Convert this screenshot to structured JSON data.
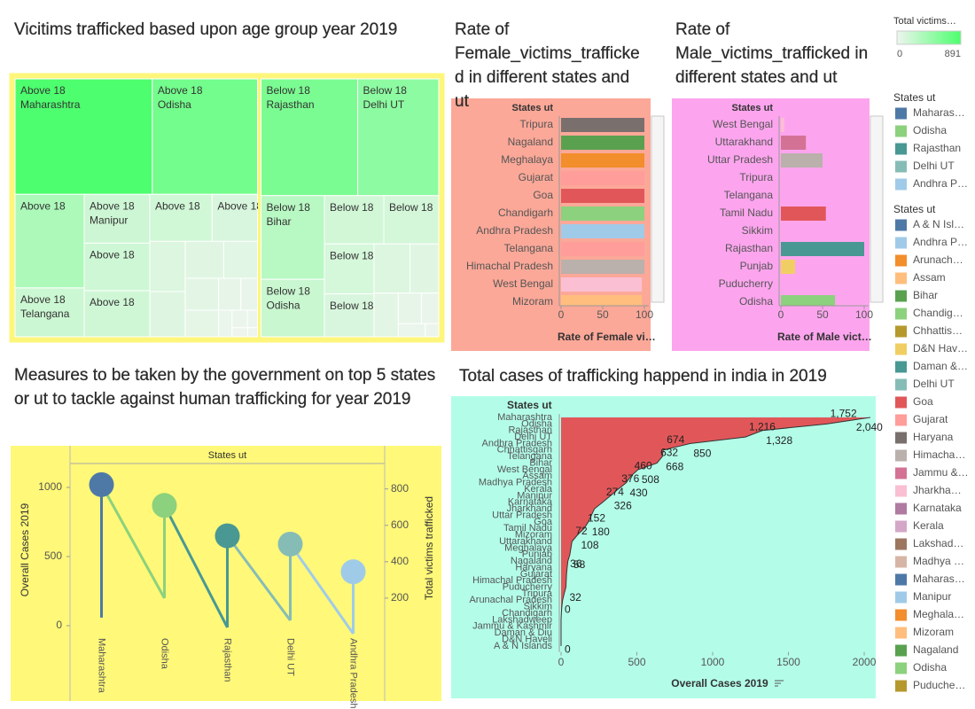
{
  "chart_data": [
    {
      "type": "treemap",
      "title": "Vicitims trafficked based upon age group year 2019",
      "border_color": "#fdf67a",
      "color_scale": {
        "title": "Total victims…",
        "range": [
          0,
          891
        ],
        "colors": [
          "#eef5ee",
          "#4dff6e"
        ]
      },
      "groups": [
        {
          "name": "Above 18",
          "labels": [
            "Maharashtra",
            "Odisha",
            null,
            "Telangana",
            "Manipur",
            null,
            null,
            null,
            null,
            null,
            null,
            null,
            null,
            null,
            null,
            null,
            null,
            null,
            null,
            null,
            null,
            null
          ],
          "values": [
            891,
            683,
            364,
            190,
            180,
            175,
            170,
            165,
            120,
            100,
            90,
            80,
            70,
            60,
            50,
            40,
            30,
            20,
            15,
            10,
            8,
            5
          ]
        },
        {
          "name": "Below 18",
          "labels": [
            "Rajasthan",
            "Delhi UT",
            "Bihar",
            "Odisha",
            null,
            null,
            null,
            null,
            null,
            null,
            null,
            null,
            null,
            null,
            null
          ],
          "values": [
            638,
            535,
            300,
            206,
            162,
            150,
            140,
            120,
            100,
            80,
            60,
            40,
            30,
            20,
            10
          ]
        }
      ]
    },
    {
      "type": "bar",
      "orientation": "horizontal",
      "title": "Rate of  Female_victims_trafficked in different states and ut",
      "column_header": "States ut",
      "xlabel": "Rate of Female vi…",
      "background": "#fba898",
      "categories": [
        "Tripura",
        "Nagaland",
        "Meghalaya",
        "Gujarat",
        "Goa",
        "Chandigarh",
        "Andhra Pradesh",
        "Telangana",
        "Himachal Pradesh",
        "West Bengal",
        "Mizoram"
      ],
      "values": [
        100,
        100,
        100,
        100,
        100,
        100,
        100,
        100,
        100,
        97,
        97
      ],
      "colors": [
        "#79706e",
        "#59a14f",
        "#f28e2b",
        "#ff9d9a",
        "#e15759",
        "#8cd17d",
        "#a0cbe8",
        "#ff9d9a",
        "#bab0ac",
        "#fabfd2",
        "#ffbe7d"
      ],
      "xlim": [
        0,
        105
      ],
      "xticks": [
        0,
        50,
        100
      ]
    },
    {
      "type": "bar",
      "orientation": "horizontal",
      "title": "Rate of  Male_victims_trafficked in different states and ut",
      "column_header": "States ut",
      "xlabel": "Rate of Male vict…",
      "background": "#fca5ee",
      "categories": [
        "West Bengal",
        "Uttarakhand",
        "Uttar Pradesh",
        "Tripura",
        "Telangana",
        "Tamil Nadu",
        "Sikkim",
        "Rajasthan",
        "Punjab",
        "Puducherry",
        "Odisha"
      ],
      "values": [
        4,
        30,
        50,
        0,
        0,
        54,
        0,
        100,
        17,
        0,
        65
      ],
      "colors": [
        "#fabfd2",
        "#d37295",
        "#bab0ac",
        "#79706e",
        "#ff9d9a",
        "#e15759",
        "#9d7660",
        "#499894",
        "#f1ce63",
        "#b6992d",
        "#8cd17d"
      ],
      "xlim": [
        0,
        105
      ],
      "xticks": [
        0,
        50,
        100
      ]
    },
    {
      "type": "lollipop",
      "title": "Measures to be taken by the government on top 5 states or ut to tackle against human trafficking for year 2019",
      "column_header": "States ut",
      "background": "#fff878",
      "categories": [
        "Maharashtra",
        "Odisha",
        "Rajasthan",
        "Delhi UT",
        "Andhra Pradesh"
      ],
      "colors": [
        "#4e79a7",
        "#8cd17d",
        "#499894",
        "#86bcb6",
        "#a0cbe8"
      ],
      "ylabel": "Overall Cases 2019",
      "y2label": "Total victims trafficked",
      "ylim": [
        -64,
        1160
      ],
      "yticks": [
        0,
        500,
        1000
      ],
      "y2lim": [
        0,
        930
      ],
      "y2ticks": [
        200,
        400,
        600,
        800
      ],
      "series": [
        {
          "values": [
            1020,
            870,
            650,
            590,
            390
          ]
        },
        {
          "axis": "y2",
          "values": [
            93,
            200,
            39,
            78,
            5
          ]
        }
      ]
    },
    {
      "type": "area",
      "orientation": "horizontal",
      "title": "Total cases of trafficking happend in india in 2019",
      "column_header": "States ut",
      "xlabel": "Overall Cases 2019",
      "background": "#b3fde8",
      "color": "#e15759",
      "categories": [
        "Maharashtra",
        "Odisha",
        "Rajasthan",
        "Delhi UT",
        "Andhra Pradesh",
        "Chhattisgarh",
        "Telangana",
        "Bihar",
        "West Bengal",
        "Assam",
        "Madhya Pradesh",
        "Kerala",
        "Manipur",
        "Karnataka",
        "Jharkhand",
        "Uttar Pradesh",
        "Goa",
        "Tamil Nadu",
        "Mizoram",
        "Uttarakhand",
        "Meghalaya",
        "Punjab",
        "Nagaland",
        "Haryana",
        "Gujarat",
        "Himachal Pradesh",
        "Puducherry",
        "Tripura",
        "Arunachal Pradesh",
        "Sikkim",
        "Chandigarh",
        "Lakshadweep",
        "Jammu & Kashmir",
        "Daman & Diu",
        "D&N Haveli",
        "A & N Islands"
      ],
      "values": [
        2040,
        1752,
        1328,
        1216,
        850,
        674,
        668,
        632,
        508,
        460,
        430,
        376,
        326,
        274,
        220,
        200,
        180,
        152,
        108,
        72,
        65,
        58,
        45,
        40,
        36,
        34,
        32,
        20,
        10,
        5,
        2,
        0,
        0,
        0,
        0,
        0
      ],
      "value_labels": [
        "2,040",
        "1,752",
        "1,328",
        "1,216",
        "850",
        "674",
        "668",
        "632",
        "508",
        "460",
        "430",
        "376",
        "326",
        "274",
        null,
        null,
        "180",
        "152",
        "108",
        "72",
        null,
        "58",
        null,
        null,
        "36",
        null,
        "32",
        null,
        null,
        null,
        null,
        "0",
        null,
        null,
        "0",
        null
      ],
      "xlim": [
        0,
        2070
      ],
      "xticks": [
        0,
        500,
        1000,
        1500,
        2000
      ]
    }
  ],
  "legends": [
    {
      "title": "States ut",
      "items": [
        {
          "label": "Maharas…",
          "color": "#4e79a7"
        },
        {
          "label": "Odisha",
          "color": "#8cd17d"
        },
        {
          "label": "Rajasthan",
          "color": "#499894"
        },
        {
          "label": "Delhi UT",
          "color": "#86bcb6"
        },
        {
          "label": "Andhra P…",
          "color": "#a0cbe8"
        }
      ]
    },
    {
      "title": "States ut",
      "items": [
        {
          "label": "A & N Isl…",
          "color": "#4e79a7"
        },
        {
          "label": "Andhra P…",
          "color": "#a0cbe8"
        },
        {
          "label": "Arunach…",
          "color": "#f28e2b"
        },
        {
          "label": "Assam",
          "color": "#ffbe7d"
        },
        {
          "label": "Bihar",
          "color": "#59a14f"
        },
        {
          "label": "Chandig…",
          "color": "#8cd17d"
        },
        {
          "label": "Chhattis…",
          "color": "#b6992d"
        },
        {
          "label": "D&N Hav…",
          "color": "#f1ce63"
        },
        {
          "label": "Daman &…",
          "color": "#499894"
        },
        {
          "label": "Delhi UT",
          "color": "#86bcb6"
        },
        {
          "label": "Goa",
          "color": "#e15759"
        },
        {
          "label": "Gujarat",
          "color": "#ff9d9a"
        },
        {
          "label": "Haryana",
          "color": "#79706e"
        },
        {
          "label": "Himacha…",
          "color": "#bab0ac"
        },
        {
          "label": "Jammu &…",
          "color": "#d37295"
        },
        {
          "label": "Jharkha…",
          "color": "#fabfd2"
        },
        {
          "label": "Karnataka",
          "color": "#b07aa1"
        },
        {
          "label": "Kerala",
          "color": "#d4a6c8"
        },
        {
          "label": "Lakshad…",
          "color": "#9d7660"
        },
        {
          "label": "Madhya …",
          "color": "#d7b5a6"
        },
        {
          "label": "Maharas…",
          "color": "#4e79a7"
        },
        {
          "label": "Manipur",
          "color": "#a0cbe8"
        },
        {
          "label": "Meghala…",
          "color": "#f28e2b"
        },
        {
          "label": "Mizoram",
          "color": "#ffbe7d"
        },
        {
          "label": "Nagaland",
          "color": "#59a14f"
        },
        {
          "label": "Odisha",
          "color": "#8cd17d"
        },
        {
          "label": "Puduche…",
          "color": "#b6992d"
        }
      ]
    }
  ]
}
